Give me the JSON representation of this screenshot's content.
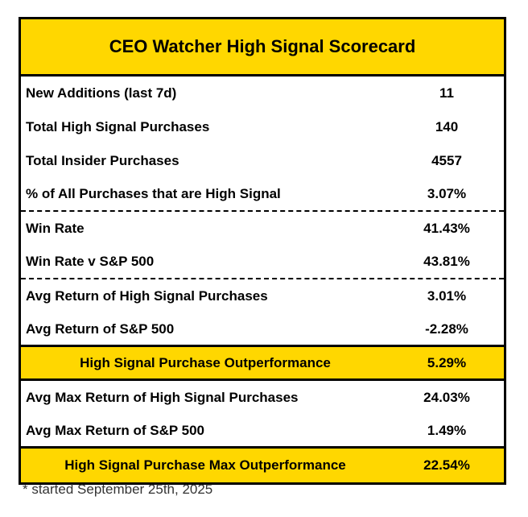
{
  "title": "CEO Watcher High Signal Scorecard",
  "rows": [
    {
      "label": "New Additions (last 7d)",
      "value": "11"
    },
    {
      "label": "Total High Signal Purchases",
      "value": "140"
    },
    {
      "label": "Total Insider Purchases",
      "value": "4557"
    },
    {
      "label": "% of All Purchases that are High Signal",
      "value": "3.07%"
    },
    {
      "label": "Win Rate",
      "value": "41.43%"
    },
    {
      "label": "Win Rate v S&P 500",
      "value": "43.81%"
    },
    {
      "label": "Avg Return of High Signal Purchases",
      "value": "3.01%"
    },
    {
      "label": "Avg Return of S&P 500",
      "value": "-2.28%"
    },
    {
      "label": "High Signal Purchase Outperformance",
      "value": "5.29%",
      "highlighted": true
    },
    {
      "label": "Avg Max Return of High Signal Purchases",
      "value": "24.03%"
    },
    {
      "label": "Avg Max Return of S&P 500",
      "value": "1.49%"
    },
    {
      "label": "High Signal Purchase Max Outperformance",
      "value": "22.54%",
      "highlighted": true
    }
  ],
  "footnote": "* started September 25th, 2025",
  "colors": {
    "highlight": "#FFD700",
    "border": "#000000"
  }
}
